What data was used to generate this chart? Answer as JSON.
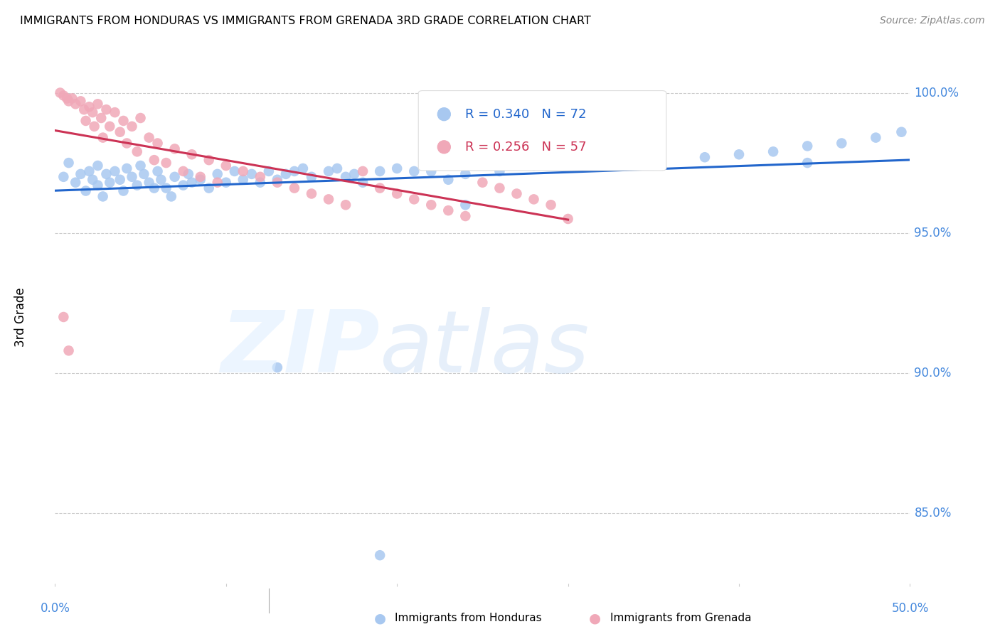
{
  "title": "IMMIGRANTS FROM HONDURAS VS IMMIGRANTS FROM GRENADA 3RD GRADE CORRELATION CHART",
  "source": "Source: ZipAtlas.com",
  "ylabel": "3rd Grade",
  "ytick_labels": [
    "100.0%",
    "95.0%",
    "90.0%",
    "85.0%"
  ],
  "ytick_values": [
    1.0,
    0.95,
    0.9,
    0.85
  ],
  "xlim": [
    0.0,
    0.5
  ],
  "ylim": [
    0.825,
    1.015
  ],
  "R_blue": 0.34,
  "N_blue": 72,
  "R_pink": 0.256,
  "N_pink": 57,
  "blue_color": "#a8c8f0",
  "pink_color": "#f0a8b8",
  "blue_line_color": "#2266cc",
  "pink_line_color": "#cc3355",
  "legend_blue_label": "Immigrants from Honduras",
  "legend_pink_label": "Immigrants from Grenada",
  "background_color": "#ffffff",
  "grid_color": "#cccccc",
  "axis_label_color": "#4488dd",
  "blue_x": [
    0.005,
    0.008,
    0.012,
    0.015,
    0.018,
    0.02,
    0.022,
    0.025,
    0.025,
    0.028,
    0.03,
    0.032,
    0.035,
    0.038,
    0.04,
    0.042,
    0.045,
    0.048,
    0.05,
    0.052,
    0.055,
    0.058,
    0.06,
    0.062,
    0.065,
    0.068,
    0.07,
    0.075,
    0.078,
    0.08,
    0.085,
    0.09,
    0.095,
    0.1,
    0.105,
    0.11,
    0.115,
    0.12,
    0.125,
    0.13,
    0.135,
    0.14,
    0.145,
    0.15,
    0.16,
    0.165,
    0.17,
    0.175,
    0.18,
    0.19,
    0.2,
    0.21,
    0.22,
    0.23,
    0.24,
    0.25,
    0.26,
    0.28,
    0.3,
    0.32,
    0.35,
    0.38,
    0.4,
    0.42,
    0.44,
    0.46,
    0.48,
    0.495,
    0.13,
    0.24,
    0.44,
    0.19
  ],
  "blue_y": [
    0.97,
    0.975,
    0.968,
    0.971,
    0.965,
    0.972,
    0.969,
    0.974,
    0.967,
    0.963,
    0.971,
    0.968,
    0.972,
    0.969,
    0.965,
    0.973,
    0.97,
    0.967,
    0.974,
    0.971,
    0.968,
    0.966,
    0.972,
    0.969,
    0.966,
    0.963,
    0.97,
    0.967,
    0.971,
    0.968,
    0.969,
    0.966,
    0.971,
    0.968,
    0.972,
    0.969,
    0.971,
    0.968,
    0.972,
    0.969,
    0.971,
    0.972,
    0.973,
    0.97,
    0.972,
    0.973,
    0.97,
    0.971,
    0.968,
    0.972,
    0.973,
    0.972,
    0.972,
    0.969,
    0.971,
    0.975,
    0.972,
    0.974,
    0.975,
    0.977,
    0.975,
    0.977,
    0.978,
    0.979,
    0.981,
    0.982,
    0.984,
    0.986,
    0.902,
    0.96,
    0.975,
    0.835
  ],
  "pink_x": [
    0.003,
    0.005,
    0.007,
    0.008,
    0.01,
    0.012,
    0.015,
    0.017,
    0.018,
    0.02,
    0.022,
    0.023,
    0.025,
    0.027,
    0.028,
    0.03,
    0.032,
    0.035,
    0.038,
    0.04,
    0.042,
    0.045,
    0.048,
    0.05,
    0.055,
    0.058,
    0.06,
    0.065,
    0.07,
    0.075,
    0.08,
    0.085,
    0.09,
    0.095,
    0.1,
    0.11,
    0.12,
    0.13,
    0.14,
    0.15,
    0.16,
    0.17,
    0.18,
    0.19,
    0.2,
    0.21,
    0.22,
    0.23,
    0.24,
    0.25,
    0.26,
    0.27,
    0.28,
    0.29,
    0.3,
    0.005,
    0.008
  ],
  "pink_y": [
    1.0,
    0.999,
    0.998,
    0.997,
    0.998,
    0.996,
    0.997,
    0.994,
    0.99,
    0.995,
    0.993,
    0.988,
    0.996,
    0.991,
    0.984,
    0.994,
    0.988,
    0.993,
    0.986,
    0.99,
    0.982,
    0.988,
    0.979,
    0.991,
    0.984,
    0.976,
    0.982,
    0.975,
    0.98,
    0.972,
    0.978,
    0.97,
    0.976,
    0.968,
    0.974,
    0.972,
    0.97,
    0.968,
    0.966,
    0.964,
    0.962,
    0.96,
    0.972,
    0.966,
    0.964,
    0.962,
    0.96,
    0.958,
    0.956,
    0.968,
    0.966,
    0.964,
    0.962,
    0.96,
    0.955,
    0.92,
    0.908
  ]
}
